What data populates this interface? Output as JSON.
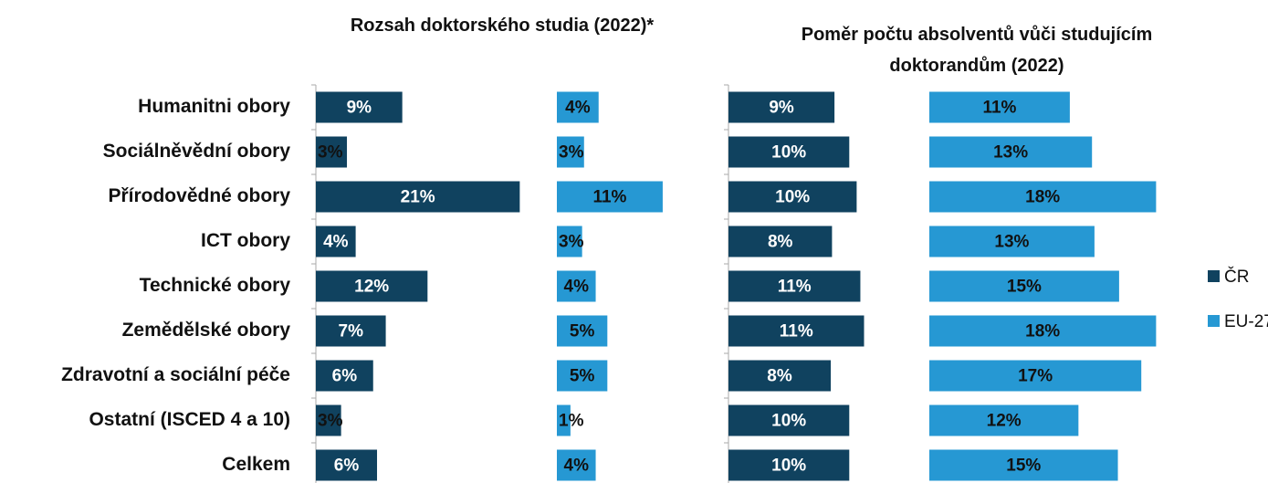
{
  "chart_data": [
    {
      "type": "bar",
      "title": "Rozsah doktorského studia (2022)*",
      "categories": [
        "Humanitni obory",
        "Sociálněvědní obory",
        "Přírodovědné obory",
        "ICT obory",
        "Technické obory",
        "Zemědělské obory",
        "Zdravotní a sociální péče",
        "Ostatní (ISCED 4 a 10)",
        "Celkem"
      ],
      "xlim": [
        0,
        22
      ],
      "series": [
        {
          "color": "#10425f",
          "values": [
            8.9,
            3.2,
            21,
            4.1,
            11.5,
            7.2,
            5.9,
            2.6,
            6.3
          ],
          "value_labels": [
            "9%",
            "3%",
            "21%",
            "4%",
            "12%",
            "7%",
            "6%",
            "3%",
            "6%"
          ]
        },
        {
          "color": "#2698d3",
          "values": [
            4.3,
            2.8,
            10.9,
            2.6,
            4,
            5.2,
            5.2,
            1.4,
            4
          ],
          "value_labels": [
            "4%",
            "3%",
            "11%",
            "3%",
            "4%",
            "5%",
            "5%",
            "1%",
            "4%"
          ]
        }
      ]
    },
    {
      "type": "bar",
      "title": "Poměr počtu absolventů vůči studujícím doktorandům (2022)",
      "xlim": [
        0,
        16
      ],
      "series": [
        {
          "name": "ČR",
          "color": "#10425f",
          "values": [
            8.6,
            9.8,
            10.4,
            8.4,
            10.7,
            11,
            8.3,
            9.8,
            9.8
          ],
          "value_labels": [
            "9%",
            "10%",
            "10%",
            "8%",
            "11%",
            "11%",
            "8%",
            "10%",
            "10%"
          ]
        },
        {
          "name": "EU-27",
          "color": "#2698d3",
          "values": [
            11.4,
            13.2,
            18.4,
            13.4,
            15.4,
            18.4,
            17.2,
            12.1,
            15.3
          ],
          "value_labels": [
            "11%",
            "13%",
            "18%",
            "13%",
            "15%",
            "18%",
            "17%",
            "12%",
            "15%"
          ]
        }
      ]
    }
  ]
}
